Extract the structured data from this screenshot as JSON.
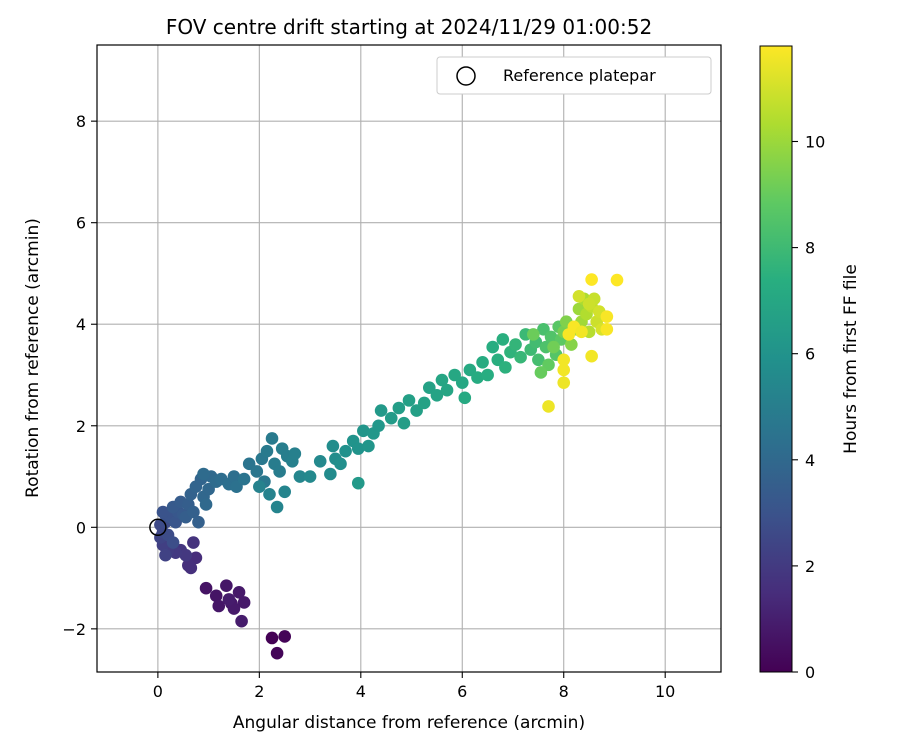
{
  "chart_data": {
    "type": "scatter",
    "title": "FOV centre drift starting at 2024/11/29 01:00:52",
    "xlabel": "Angular distance from reference (arcmin)",
    "ylabel": "Rotation from reference (arcmin)",
    "xlim": [
      -1.2,
      11.1
    ],
    "ylim": [
      -2.85,
      9.5
    ],
    "xticks": [
      0,
      2,
      4,
      6,
      8,
      10
    ],
    "yticks": [
      -2,
      0,
      2,
      4,
      6,
      8
    ],
    "xtick_labels": [
      "0",
      "2",
      "4",
      "6",
      "8",
      "10"
    ],
    "ytick_labels": [
      "−2",
      "0",
      "2",
      "4",
      "6",
      "8"
    ],
    "grid": true,
    "legend": {
      "position": "upper right",
      "entries": [
        "Reference platepar"
      ]
    },
    "reference_point": {
      "x": 0,
      "y": 0,
      "label": "Reference platepar",
      "marker": "open-circle"
    },
    "colorbar": {
      "label": "Hours from first FF file",
      "range": [
        0,
        11.8
      ],
      "ticks": [
        0,
        2,
        4,
        6,
        8,
        10
      ],
      "tick_labels": [
        "0",
        "2",
        "4",
        "6",
        "8",
        "10"
      ],
      "colormap": "viridis"
    },
    "points": [
      {
        "x": 2.25,
        "y": -2.18,
        "c": 0.05
      },
      {
        "x": 2.5,
        "y": -2.15,
        "c": 0.1
      },
      {
        "x": 2.35,
        "y": -2.48,
        "c": 0.15
      },
      {
        "x": 0.95,
        "y": -1.2,
        "c": 0.6
      },
      {
        "x": 1.15,
        "y": -1.35,
        "c": 0.65
      },
      {
        "x": 1.35,
        "y": -1.15,
        "c": 0.7
      },
      {
        "x": 1.2,
        "y": -1.55,
        "c": 0.7
      },
      {
        "x": 1.45,
        "y": -1.5,
        "c": 0.75
      },
      {
        "x": 1.6,
        "y": -1.28,
        "c": 0.8
      },
      {
        "x": 1.7,
        "y": -1.48,
        "c": 0.8
      },
      {
        "x": 1.5,
        "y": -1.6,
        "c": 0.85
      },
      {
        "x": 1.65,
        "y": -1.85,
        "c": 0.9
      },
      {
        "x": 1.4,
        "y": -1.42,
        "c": 0.9
      },
      {
        "x": 0.75,
        "y": -0.6,
        "c": 1.5
      },
      {
        "x": 0.6,
        "y": -0.75,
        "c": 1.6
      },
      {
        "x": 0.65,
        "y": -0.8,
        "c": 1.6
      },
      {
        "x": 0.7,
        "y": -0.3,
        "c": 1.7
      },
      {
        "x": 0.45,
        "y": -0.45,
        "c": 1.8
      },
      {
        "x": 0.55,
        "y": -0.55,
        "c": 1.9
      },
      {
        "x": 0.35,
        "y": -0.5,
        "c": 2.0
      },
      {
        "x": 0.2,
        "y": -0.45,
        "c": 2.1
      },
      {
        "x": 0.1,
        "y": -0.35,
        "c": 2.2
      },
      {
        "x": 0.15,
        "y": -0.55,
        "c": 2.3
      },
      {
        "x": 0.05,
        "y": -0.2,
        "c": 2.4
      },
      {
        "x": 0.1,
        "y": -0.1,
        "c": 2.5
      },
      {
        "x": 0.05,
        "y": 0.05,
        "c": 2.6
      },
      {
        "x": 0.15,
        "y": 0.1,
        "c": 2.7
      },
      {
        "x": 0.2,
        "y": -0.15,
        "c": 2.7
      },
      {
        "x": 0.3,
        "y": -0.3,
        "c": 2.8
      },
      {
        "x": 0.15,
        "y": 0.25,
        "c": 2.9
      },
      {
        "x": 0.25,
        "y": 0.2,
        "c": 3.0
      },
      {
        "x": 0.1,
        "y": 0.3,
        "c": 3.0
      },
      {
        "x": 0.35,
        "y": 0.1,
        "c": 3.1
      },
      {
        "x": 0.4,
        "y": 0.3,
        "c": 3.2
      },
      {
        "x": 0.3,
        "y": 0.4,
        "c": 3.3
      },
      {
        "x": 0.5,
        "y": 0.25,
        "c": 3.3
      },
      {
        "x": 0.45,
        "y": 0.5,
        "c": 3.4
      },
      {
        "x": 0.6,
        "y": 0.45,
        "c": 3.5
      },
      {
        "x": 0.55,
        "y": 0.2,
        "c": 3.5
      },
      {
        "x": 0.7,
        "y": 0.3,
        "c": 3.6
      },
      {
        "x": 0.8,
        "y": 0.1,
        "c": 3.6
      },
      {
        "x": 0.65,
        "y": 0.65,
        "c": 3.7
      },
      {
        "x": 0.75,
        "y": 0.8,
        "c": 3.8
      },
      {
        "x": 0.85,
        "y": 0.95,
        "c": 3.8
      },
      {
        "x": 0.9,
        "y": 0.6,
        "c": 3.9
      },
      {
        "x": 1.0,
        "y": 0.75,
        "c": 3.9
      },
      {
        "x": 0.95,
        "y": 0.45,
        "c": 4.0
      },
      {
        "x": 1.05,
        "y": 1.0,
        "c": 4.0
      },
      {
        "x": 1.15,
        "y": 0.9,
        "c": 4.1
      },
      {
        "x": 0.9,
        "y": 1.05,
        "c": 4.1
      },
      {
        "x": 1.25,
        "y": 0.95,
        "c": 4.2
      },
      {
        "x": 1.4,
        "y": 0.85,
        "c": 4.3
      },
      {
        "x": 1.5,
        "y": 1.0,
        "c": 4.3
      },
      {
        "x": 1.55,
        "y": 0.8,
        "c": 4.4
      },
      {
        "x": 1.7,
        "y": 0.95,
        "c": 4.5
      },
      {
        "x": 1.8,
        "y": 1.25,
        "c": 4.5
      },
      {
        "x": 1.95,
        "y": 1.1,
        "c": 4.6
      },
      {
        "x": 2.05,
        "y": 1.35,
        "c": 4.7
      },
      {
        "x": 2.1,
        "y": 0.9,
        "c": 4.7
      },
      {
        "x": 2.15,
        "y": 1.5,
        "c": 4.8
      },
      {
        "x": 2.25,
        "y": 1.75,
        "c": 4.8
      },
      {
        "x": 2.3,
        "y": 1.25,
        "c": 4.9
      },
      {
        "x": 2.4,
        "y": 1.1,
        "c": 4.9
      },
      {
        "x": 2.45,
        "y": 1.55,
        "c": 5.0
      },
      {
        "x": 2.55,
        "y": 1.4,
        "c": 5.0
      },
      {
        "x": 2.65,
        "y": 1.3,
        "c": 5.1
      },
      {
        "x": 2.7,
        "y": 1.45,
        "c": 5.1
      },
      {
        "x": 2.0,
        "y": 0.8,
        "c": 5.2
      },
      {
        "x": 2.2,
        "y": 0.65,
        "c": 5.2
      },
      {
        "x": 2.35,
        "y": 0.4,
        "c": 5.3
      },
      {
        "x": 2.5,
        "y": 0.7,
        "c": 5.3
      },
      {
        "x": 2.8,
        "y": 1.0,
        "c": 5.4
      },
      {
        "x": 3.0,
        "y": 1.0,
        "c": 5.5
      },
      {
        "x": 3.2,
        "y": 1.3,
        "c": 5.5
      },
      {
        "x": 3.4,
        "y": 1.05,
        "c": 5.6
      },
      {
        "x": 3.45,
        "y": 1.6,
        "c": 5.7
      },
      {
        "x": 3.5,
        "y": 1.35,
        "c": 5.7
      },
      {
        "x": 3.6,
        "y": 1.25,
        "c": 5.8
      },
      {
        "x": 3.7,
        "y": 1.5,
        "c": 5.9
      },
      {
        "x": 3.85,
        "y": 1.7,
        "c": 6.0
      },
      {
        "x": 3.95,
        "y": 1.55,
        "c": 6.0
      },
      {
        "x": 4.05,
        "y": 1.9,
        "c": 6.1
      },
      {
        "x": 4.15,
        "y": 1.6,
        "c": 6.1
      },
      {
        "x": 4.25,
        "y": 1.85,
        "c": 6.2
      },
      {
        "x": 4.35,
        "y": 2.0,
        "c": 6.2
      },
      {
        "x": 3.95,
        "y": 0.87,
        "c": 6.3
      },
      {
        "x": 4.4,
        "y": 2.3,
        "c": 6.3
      },
      {
        "x": 4.6,
        "y": 2.15,
        "c": 6.4
      },
      {
        "x": 4.75,
        "y": 2.35,
        "c": 6.5
      },
      {
        "x": 4.85,
        "y": 2.05,
        "c": 6.5
      },
      {
        "x": 4.95,
        "y": 2.5,
        "c": 6.6
      },
      {
        "x": 5.1,
        "y": 2.3,
        "c": 6.6
      },
      {
        "x": 5.25,
        "y": 2.45,
        "c": 6.7
      },
      {
        "x": 5.35,
        "y": 2.75,
        "c": 6.7
      },
      {
        "x": 5.5,
        "y": 2.6,
        "c": 6.8
      },
      {
        "x": 5.6,
        "y": 2.9,
        "c": 6.9
      },
      {
        "x": 5.7,
        "y": 2.7,
        "c": 6.9
      },
      {
        "x": 5.85,
        "y": 3.0,
        "c": 7.0
      },
      {
        "x": 6.0,
        "y": 2.85,
        "c": 7.0
      },
      {
        "x": 6.05,
        "y": 2.55,
        "c": 7.1
      },
      {
        "x": 6.15,
        "y": 3.1,
        "c": 7.1
      },
      {
        "x": 6.3,
        "y": 2.95,
        "c": 7.2
      },
      {
        "x": 6.4,
        "y": 3.25,
        "c": 7.2
      },
      {
        "x": 6.5,
        "y": 3.0,
        "c": 7.3
      },
      {
        "x": 6.6,
        "y": 3.55,
        "c": 7.3
      },
      {
        "x": 6.7,
        "y": 3.3,
        "c": 7.4
      },
      {
        "x": 6.8,
        "y": 3.7,
        "c": 7.4
      },
      {
        "x": 6.85,
        "y": 3.15,
        "c": 7.5
      },
      {
        "x": 6.95,
        "y": 3.45,
        "c": 7.6
      },
      {
        "x": 7.05,
        "y": 3.6,
        "c": 7.7
      },
      {
        "x": 7.15,
        "y": 3.35,
        "c": 7.8
      },
      {
        "x": 7.25,
        "y": 3.8,
        "c": 7.9
      },
      {
        "x": 7.35,
        "y": 3.5,
        "c": 8.0
      },
      {
        "x": 7.45,
        "y": 3.65,
        "c": 8.1
      },
      {
        "x": 7.5,
        "y": 3.3,
        "c": 8.2
      },
      {
        "x": 7.6,
        "y": 3.9,
        "c": 8.3
      },
      {
        "x": 7.65,
        "y": 3.55,
        "c": 8.4
      },
      {
        "x": 7.75,
        "y": 3.75,
        "c": 8.5
      },
      {
        "x": 7.85,
        "y": 3.4,
        "c": 8.6
      },
      {
        "x": 7.9,
        "y": 3.95,
        "c": 8.7
      },
      {
        "x": 7.95,
        "y": 3.7,
        "c": 8.8
      },
      {
        "x": 7.7,
        "y": 3.2,
        "c": 8.9
      },
      {
        "x": 7.55,
        "y": 3.05,
        "c": 9.0
      },
      {
        "x": 7.4,
        "y": 3.8,
        "c": 9.1
      },
      {
        "x": 7.8,
        "y": 3.55,
        "c": 9.2
      },
      {
        "x": 8.0,
        "y": 3.85,
        "c": 9.3
      },
      {
        "x": 8.05,
        "y": 4.05,
        "c": 9.5
      },
      {
        "x": 8.15,
        "y": 3.6,
        "c": 9.6
      },
      {
        "x": 8.25,
        "y": 3.9,
        "c": 9.8
      },
      {
        "x": 8.3,
        "y": 4.3,
        "c": 10.0
      },
      {
        "x": 8.35,
        "y": 4.05,
        "c": 10.1
      },
      {
        "x": 8.4,
        "y": 4.5,
        "c": 10.3
      },
      {
        "x": 8.45,
        "y": 4.2,
        "c": 10.4
      },
      {
        "x": 8.5,
        "y": 3.85,
        "c": 10.5
      },
      {
        "x": 8.55,
        "y": 4.35,
        "c": 10.7
      },
      {
        "x": 8.6,
        "y": 4.5,
        "c": 10.8
      },
      {
        "x": 8.65,
        "y": 4.05,
        "c": 10.9
      },
      {
        "x": 8.7,
        "y": 4.25,
        "c": 11.0
      },
      {
        "x": 8.75,
        "y": 3.9,
        "c": 11.1
      },
      {
        "x": 8.3,
        "y": 4.55,
        "c": 11.0
      },
      {
        "x": 8.5,
        "y": 4.4,
        "c": 10.9
      },
      {
        "x": 7.7,
        "y": 2.38,
        "c": 11.5
      },
      {
        "x": 8.0,
        "y": 2.85,
        "c": 11.5
      },
      {
        "x": 8.0,
        "y": 3.1,
        "c": 11.6
      },
      {
        "x": 8.0,
        "y": 3.3,
        "c": 11.6
      },
      {
        "x": 8.55,
        "y": 3.37,
        "c": 11.6
      },
      {
        "x": 8.1,
        "y": 3.8,
        "c": 11.7
      },
      {
        "x": 8.2,
        "y": 3.95,
        "c": 11.7
      },
      {
        "x": 8.55,
        "y": 4.88,
        "c": 11.8
      },
      {
        "x": 9.05,
        "y": 4.87,
        "c": 11.8
      },
      {
        "x": 8.85,
        "y": 4.15,
        "c": 11.7
      },
      {
        "x": 8.85,
        "y": 3.9,
        "c": 11.7
      },
      {
        "x": 8.35,
        "y": 3.85,
        "c": 11.6
      }
    ]
  }
}
